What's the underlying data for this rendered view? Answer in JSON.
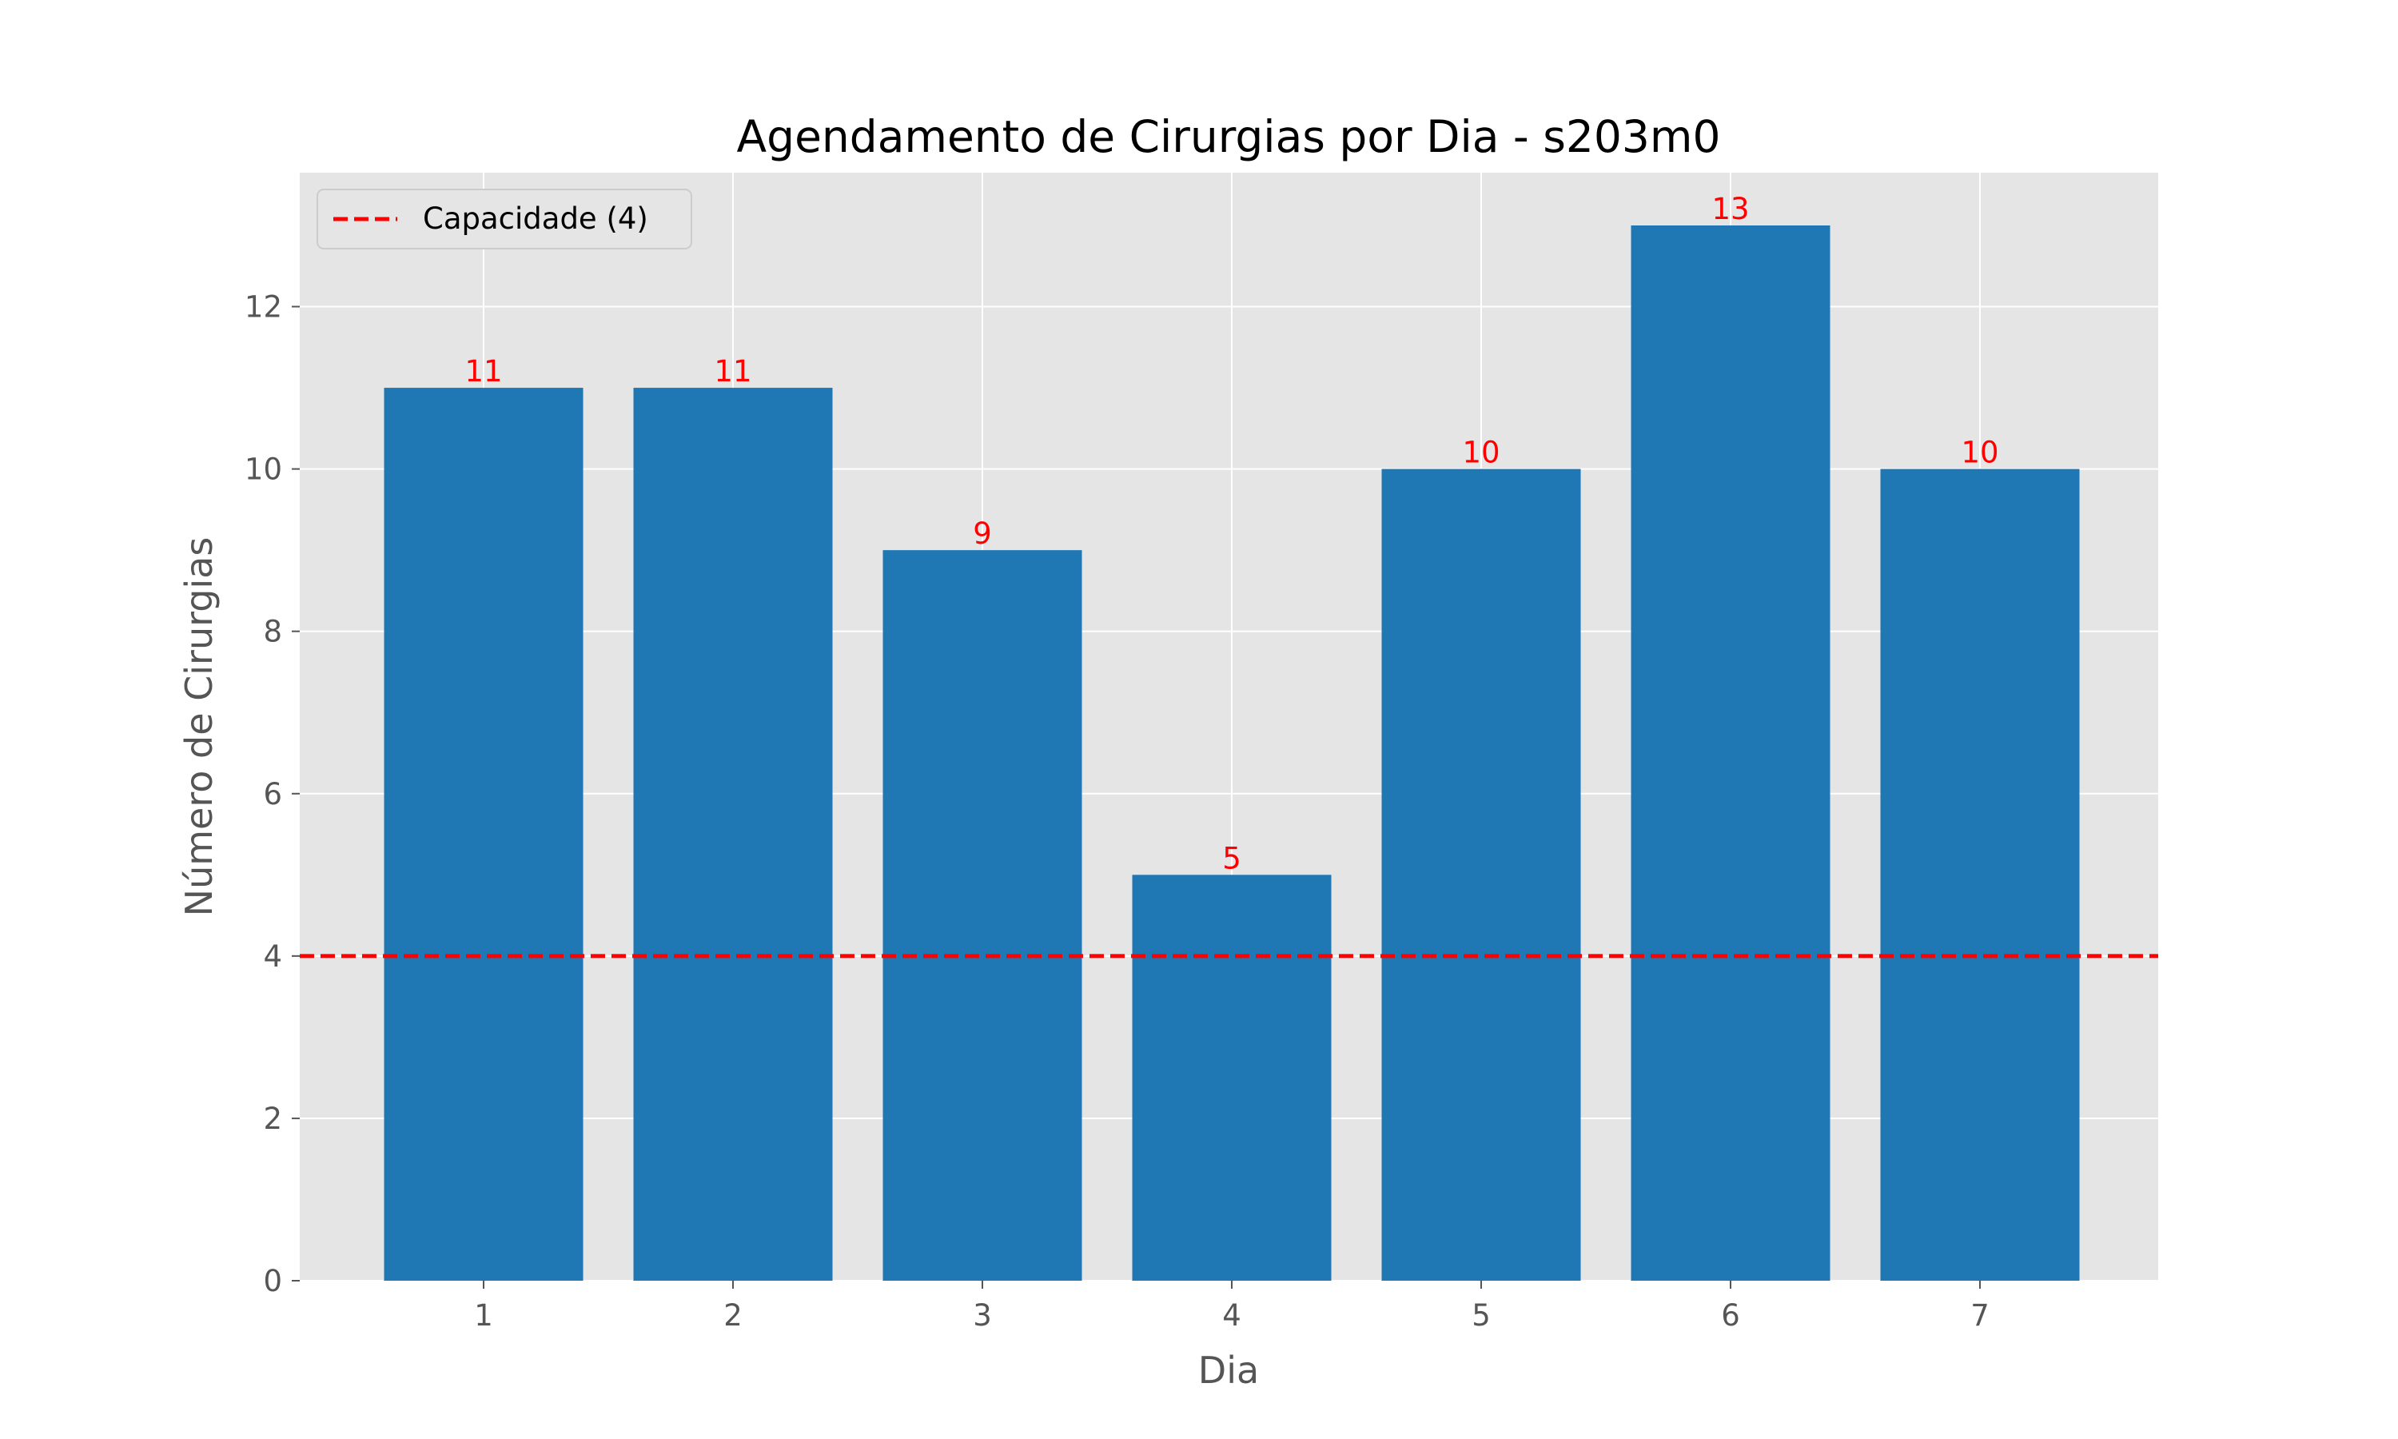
{
  "chart_data": {
    "type": "bar",
    "title": "Agendamento de Cirurgias por Dia - s203m0",
    "xlabel": "Dia",
    "ylabel": "Número de Cirurgias",
    "categories": [
      "1",
      "2",
      "3",
      "4",
      "5",
      "6",
      "7"
    ],
    "values": [
      11,
      11,
      9,
      5,
      10,
      13,
      10
    ],
    "value_labels": [
      "11",
      "11",
      "9",
      "5",
      "10",
      "13",
      "10"
    ],
    "ylim": [
      0,
      13.65
    ],
    "yticks": [
      0,
      2,
      4,
      6,
      8,
      10,
      12
    ],
    "ytick_labels": [
      "0",
      "2",
      "4",
      "6",
      "8",
      "10",
      "12"
    ],
    "reference_line": {
      "value": 4,
      "style": "dashed",
      "label": "Capacidade (4)"
    },
    "legend": {
      "position": "top-left",
      "entries": [
        "Capacidade (4)"
      ]
    },
    "grid": true,
    "colors": {
      "bar": "#1f77b4",
      "reference_line": "#ff0000",
      "value_label": "#ff0000",
      "plot_background": "#e5e5e5",
      "grid": "#ffffff"
    }
  }
}
